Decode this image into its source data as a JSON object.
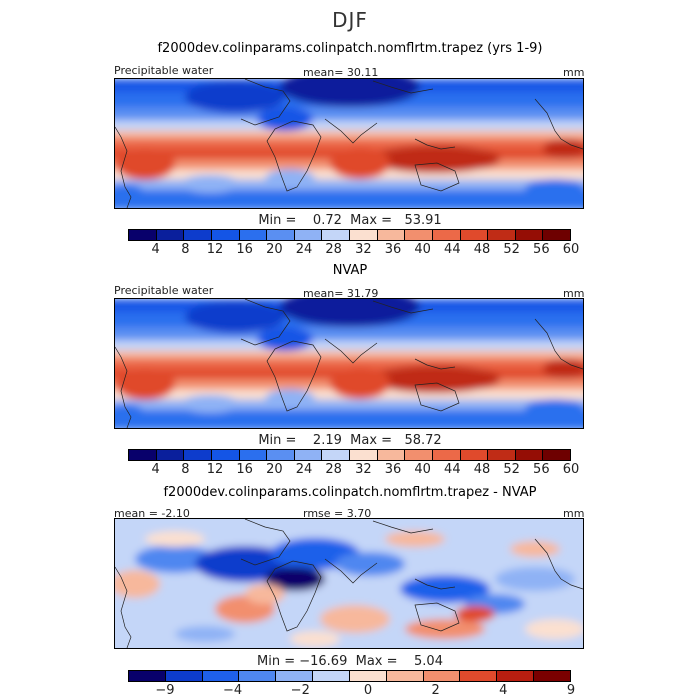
{
  "season": "DJF",
  "units": "mm",
  "panels": [
    {
      "title": "f2000dev.colinparams.colinpatch.nomflrtm.trapez (yrs 1-9)",
      "left_label": "Precipitable water",
      "center_label": "mean=  30.11",
      "right_label": "mm",
      "minmax": "Min =    0.72  Max =   53.91",
      "variant": "model"
    },
    {
      "title": "NVAP",
      "left_label": "Precipitable water",
      "center_label": "mean=  31.79",
      "right_label": "mm",
      "minmax": "Min =    2.19  Max =   58.72",
      "variant": "obs"
    },
    {
      "title": "f2000dev.colinparams.colinpatch.nomflrtm.trapez - NVAP",
      "left_label": "mean =  -2.10",
      "center_label": "rmse =    3.70",
      "right_label": "mm",
      "minmax": "Min = −16.69  Max =    5.04",
      "variant": "diff"
    }
  ],
  "colorbar_main": {
    "ticks": [
      "4",
      "8",
      "12",
      "16",
      "20",
      "24",
      "28",
      "32",
      "36",
      "40",
      "44",
      "48",
      "52",
      "56",
      "60"
    ],
    "colors": [
      "#08006b",
      "#0a1f9c",
      "#0d3ccc",
      "#1455e6",
      "#2b6fee",
      "#5a8ff2",
      "#8fb2f5",
      "#c4d6f8",
      "#fbe0d0",
      "#f7b89c",
      "#f28f6e",
      "#ec6948",
      "#e04a2c",
      "#c02c16",
      "#950d05",
      "#6e0000"
    ]
  },
  "colorbar_diff": {
    "ticks": [
      "−9",
      "−4",
      "−2",
      "0",
      "2",
      "4",
      "9"
    ],
    "colors": [
      "#08006b",
      "#0d3ccc",
      "#1f60ea",
      "#4f87f0",
      "#8fb2f5",
      "#c4d6f8",
      "#fbe0d0",
      "#f7b89c",
      "#f28f6e",
      "#e04a2c",
      "#b81e10",
      "#7a0000"
    ]
  },
  "chart_data": [
    {
      "type": "heatmap",
      "title": "f2000dev.colinparams.colinpatch.nomflrtm.trapez (yrs 1-9)",
      "variable": "Precipitable water",
      "units": "mm",
      "mean": 30.11,
      "min": 0.72,
      "max": 53.91,
      "contour_levels": [
        4,
        8,
        12,
        16,
        20,
        24,
        28,
        32,
        36,
        40,
        44,
        48,
        52,
        56,
        60
      ]
    },
    {
      "type": "heatmap",
      "title": "NVAP",
      "variable": "Precipitable water",
      "units": "mm",
      "mean": 31.79,
      "min": 2.19,
      "max": 58.72,
      "contour_levels": [
        4,
        8,
        12,
        16,
        20,
        24,
        28,
        32,
        36,
        40,
        44,
        48,
        52,
        56,
        60
      ]
    },
    {
      "type": "heatmap",
      "title": "f2000dev.colinparams.colinpatch.nomflrtm.trapez - NVAP",
      "units": "mm",
      "mean": -2.1,
      "rmse": 3.7,
      "min": -16.69,
      "max": 5.04,
      "contour_levels": [
        -9,
        -4,
        -2,
        0,
        2,
        4,
        9
      ]
    }
  ]
}
